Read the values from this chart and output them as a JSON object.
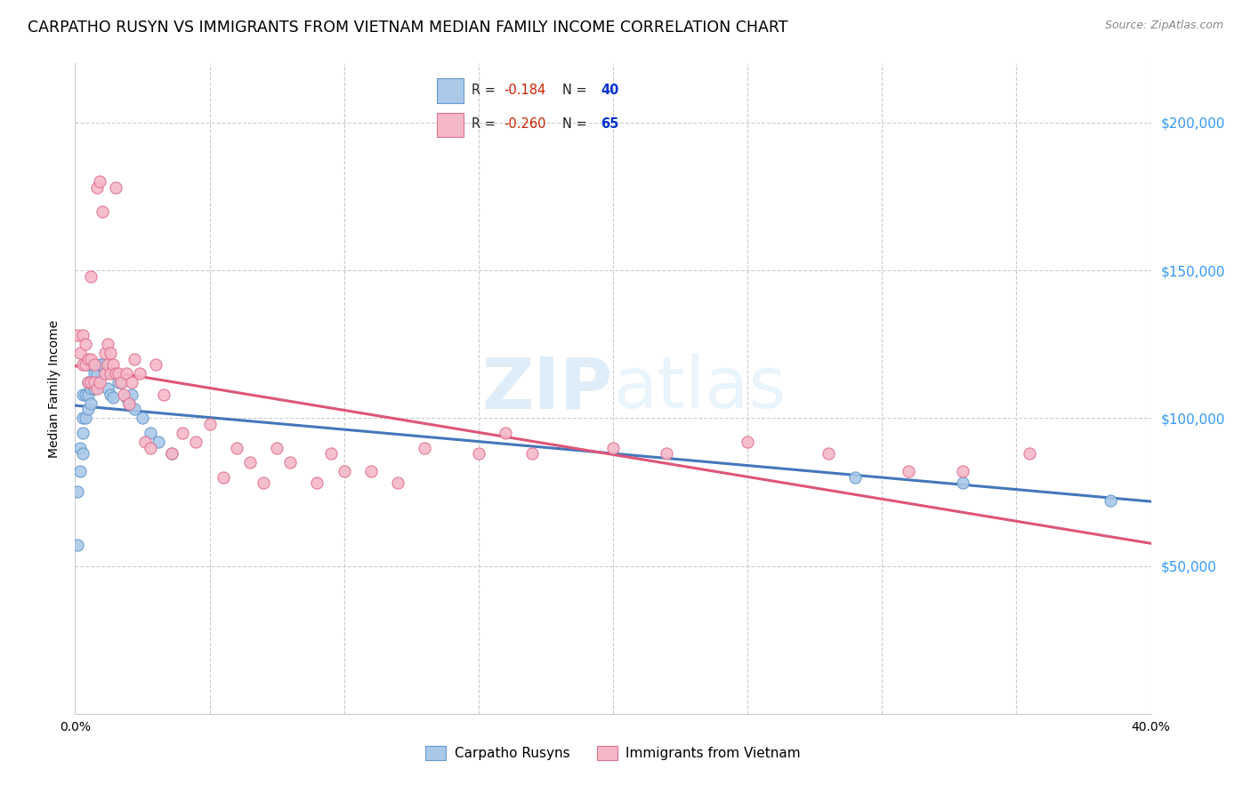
{
  "title": "CARPATHO RUSYN VS IMMIGRANTS FROM VIETNAM MEDIAN FAMILY INCOME CORRELATION CHART",
  "source": "Source: ZipAtlas.com",
  "ylabel": "Median Family Income",
  "ytick_labels": [
    "$50,000",
    "$100,000",
    "$150,000",
    "$200,000"
  ],
  "ytick_values": [
    50000,
    100000,
    150000,
    200000
  ],
  "ylim": [
    0,
    220000
  ],
  "xlim": [
    0.0,
    0.4
  ],
  "watermark": "ZIPatlas",
  "series1_label": "Carpatho Rusyns",
  "series1_color": "#aac9e8",
  "series1_edge_color": "#6699cc",
  "series1_line_color": "#4477bb",
  "series1_R": "-0.184",
  "series1_N": "40",
  "series1_x": [
    0.001,
    0.001,
    0.002,
    0.002,
    0.003,
    0.003,
    0.003,
    0.003,
    0.004,
    0.004,
    0.005,
    0.005,
    0.005,
    0.005,
    0.006,
    0.006,
    0.006,
    0.007,
    0.007,
    0.008,
    0.008,
    0.009,
    0.01,
    0.011,
    0.012,
    0.013,
    0.014,
    0.016,
    0.017,
    0.019,
    0.02,
    0.021,
    0.022,
    0.025,
    0.028,
    0.031,
    0.036,
    0.29,
    0.33,
    0.385
  ],
  "series1_y": [
    57000,
    75000,
    82000,
    90000,
    88000,
    95000,
    100000,
    108000,
    100000,
    108000,
    103000,
    108000,
    112000,
    118000,
    105000,
    110000,
    118000,
    110000,
    115000,
    112000,
    115000,
    118000,
    118000,
    115000,
    110000,
    108000,
    107000,
    112000,
    112000,
    107000,
    105000,
    108000,
    103000,
    100000,
    95000,
    92000,
    88000,
    80000,
    78000,
    72000
  ],
  "series2_label": "Immigrants from Vietnam",
  "series2_color": "#f5b8c8",
  "series2_edge_color": "#e07090",
  "series2_line_color": "#dd5577",
  "series2_R": "-0.260",
  "series2_N": "65",
  "series2_x": [
    0.001,
    0.002,
    0.003,
    0.003,
    0.004,
    0.004,
    0.005,
    0.005,
    0.006,
    0.006,
    0.006,
    0.007,
    0.007,
    0.008,
    0.008,
    0.009,
    0.009,
    0.01,
    0.011,
    0.011,
    0.012,
    0.012,
    0.013,
    0.013,
    0.014,
    0.015,
    0.015,
    0.016,
    0.017,
    0.018,
    0.019,
    0.02,
    0.021,
    0.022,
    0.024,
    0.026,
    0.028,
    0.03,
    0.033,
    0.036,
    0.04,
    0.045,
    0.05,
    0.055,
    0.06,
    0.065,
    0.07,
    0.075,
    0.08,
    0.09,
    0.095,
    0.1,
    0.11,
    0.12,
    0.13,
    0.15,
    0.16,
    0.17,
    0.2,
    0.22,
    0.25,
    0.28,
    0.31,
    0.33,
    0.355
  ],
  "series2_y": [
    128000,
    122000,
    118000,
    128000,
    118000,
    125000,
    112000,
    120000,
    112000,
    120000,
    148000,
    112000,
    118000,
    110000,
    178000,
    112000,
    180000,
    170000,
    115000,
    122000,
    118000,
    125000,
    115000,
    122000,
    118000,
    115000,
    178000,
    115000,
    112000,
    108000,
    115000,
    105000,
    112000,
    120000,
    115000,
    92000,
    90000,
    118000,
    108000,
    88000,
    95000,
    92000,
    98000,
    80000,
    90000,
    85000,
    78000,
    90000,
    85000,
    78000,
    88000,
    82000,
    82000,
    78000,
    90000,
    88000,
    95000,
    88000,
    90000,
    88000,
    92000,
    88000,
    82000,
    82000,
    88000
  ],
  "background_color": "#ffffff",
  "grid_color": "#cccccc",
  "title_fontsize": 12.5,
  "axis_label_fontsize": 10,
  "tick_fontsize": 10,
  "legend_fontsize": 11
}
